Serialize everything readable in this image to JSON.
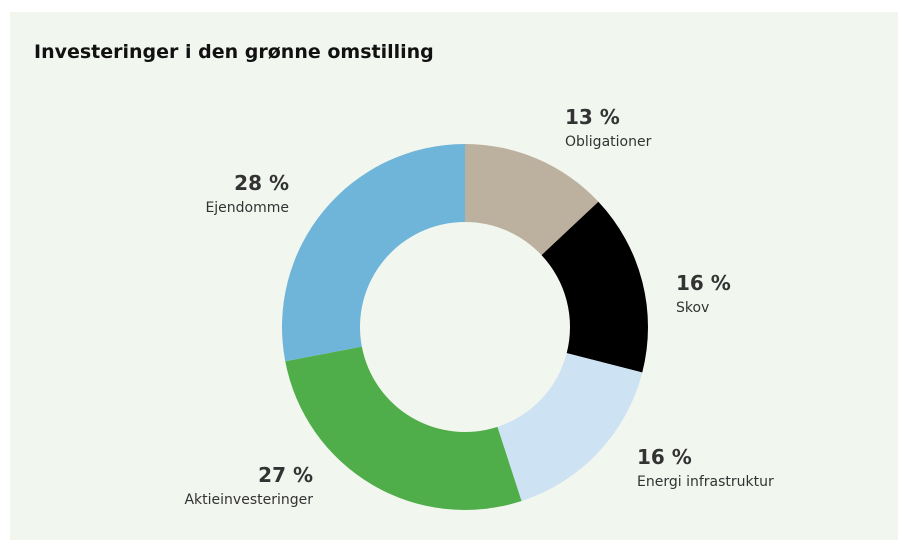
{
  "chart_data": {
    "type": "donut",
    "title": "Investeringer i den grønne omstilling",
    "categories": [
      "Obligationer",
      "Skov",
      "Energi infrastruktur",
      "Aktieinvesteringer",
      "Ejendomme"
    ],
    "values": [
      13,
      16,
      16,
      27,
      28
    ],
    "value_labels": [
      "13 %",
      "16 %",
      "16 %",
      "27 %",
      "28 %"
    ],
    "colors": [
      "#bcb09f",
      "#000000",
      "#cde2f2",
      "#4fae4a",
      "#6fb5d9"
    ]
  }
}
